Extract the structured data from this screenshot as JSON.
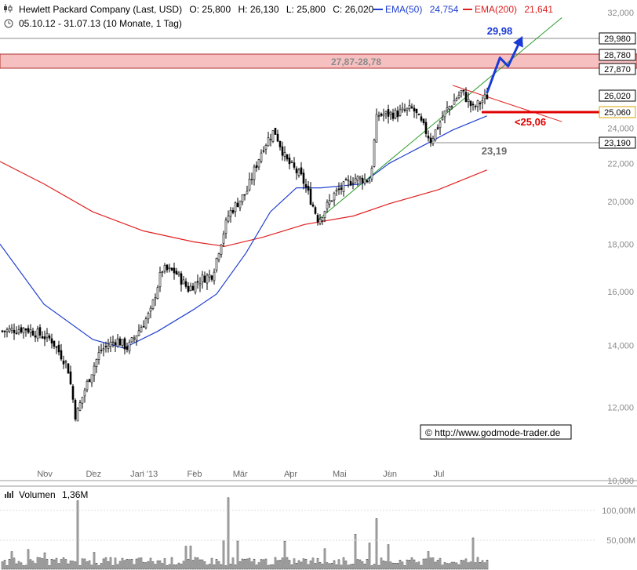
{
  "header": {
    "icon": "candlestick-chart-icon",
    "instrument": "Hewlett Packard Company (Last, USD)",
    "open": "O: 25,800",
    "high": "H: 26,130",
    "low": "L: 25,800",
    "close": "C: 26,020",
    "ema50_label": "EMA(50)",
    "ema50_value": "24,754",
    "ema200_label": "EMA(200)",
    "ema200_value": "21,641",
    "clock_icon": "clock-icon",
    "range": "05.10.12 - 31.07.13 (10 Monate, 1 Tag)"
  },
  "colors": {
    "ema50": "#2040d0",
    "ema200": "#e02020",
    "trendline": "#2a9a2a",
    "resistance_zone": "#f5b8b8",
    "arrow": "#1a3ad6",
    "support_line": "#e00000",
    "candle": "#000000",
    "volume_fill": "#bfbfbf"
  },
  "annotations": {
    "target": "29,98",
    "zone": "27,87-28,78",
    "support": "<25,06",
    "low_level": "23,19",
    "watermark": "© http://www.godmode-trader.de"
  },
  "price_tags": [
    "29,980",
    "28,780",
    "27,870",
    "26,020",
    "25,060",
    "23,190"
  ],
  "volume": {
    "label": "Volumen",
    "value": "1,36M",
    "ticks": [
      "100,00M",
      "50,00M"
    ]
  },
  "chart_data": {
    "type": "candlestick",
    "title": "Hewlett Packard Company (Last, USD)",
    "scale": "log",
    "ylim": [
      10,
      32
    ],
    "y_ticks": [
      "32,000",
      "30,000",
      "28,000",
      "26,000",
      "24,000",
      "22,000",
      "20,000",
      "18,000",
      "16,000",
      "14,000",
      "12,000",
      "10,000"
    ],
    "x_labels": [
      "Nov",
      "Dez",
      "Jan '13",
      "Feb",
      "Mär",
      "Apr",
      "Mai",
      "Jun",
      "Jul"
    ],
    "last": {
      "open": 25.8,
      "high": 26.13,
      "low": 25.8,
      "close": 26.02
    },
    "ema50_last": 24.754,
    "ema200_last": 21.641,
    "levels": {
      "target": 29.98,
      "zone_top": 28.78,
      "zone_bottom": 27.87,
      "last": 26.02,
      "support": 25.06,
      "low": 23.19
    },
    "close_path": [
      {
        "date": "2012-10-05",
        "close": 14.5
      },
      {
        "date": "2012-10-20",
        "close": 14.6
      },
      {
        "date": "2012-11-05",
        "close": 14.2
      },
      {
        "date": "2012-11-15",
        "close": 13.3
      },
      {
        "date": "2012-11-20",
        "close": 11.7
      },
      {
        "date": "2012-11-26",
        "close": 12.6
      },
      {
        "date": "2012-12-05",
        "close": 13.8
      },
      {
        "date": "2012-12-15",
        "close": 14.2
      },
      {
        "date": "2012-12-22",
        "close": 13.9
      },
      {
        "date": "2013-01-05",
        "close": 15.2
      },
      {
        "date": "2013-01-12",
        "close": 16.9
      },
      {
        "date": "2013-01-20",
        "close": 16.8
      },
      {
        "date": "2013-01-28",
        "close": 16.1
      },
      {
        "date": "2013-02-05",
        "close": 16.5
      },
      {
        "date": "2013-02-12",
        "close": 16.7
      },
      {
        "date": "2013-02-22",
        "close": 19.4
      },
      {
        "date": "2013-03-05",
        "close": 20.5
      },
      {
        "date": "2013-03-15",
        "close": 22.9
      },
      {
        "date": "2013-03-22",
        "close": 23.9
      },
      {
        "date": "2013-03-29",
        "close": 22.2
      },
      {
        "date": "2013-04-08",
        "close": 21.2
      },
      {
        "date": "2013-04-18",
        "close": 19.1
      },
      {
        "date": "2013-04-28",
        "close": 20.4
      },
      {
        "date": "2013-05-10",
        "close": 21.2
      },
      {
        "date": "2013-05-20",
        "close": 21.1
      },
      {
        "date": "2013-05-24",
        "close": 24.8
      },
      {
        "date": "2013-06-05",
        "close": 24.9
      },
      {
        "date": "2013-06-15",
        "close": 25.2
      },
      {
        "date": "2013-06-26",
        "close": 23.3
      },
      {
        "date": "2013-07-05",
        "close": 25.0
      },
      {
        "date": "2013-07-15",
        "close": 26.3
      },
      {
        "date": "2013-07-22",
        "close": 25.2
      },
      {
        "date": "2013-07-31",
        "close": 26.02
      }
    ],
    "ema50": [
      {
        "date": "2012-10-05",
        "value": 18.0
      },
      {
        "date": "2012-11-01",
        "value": 15.5
      },
      {
        "date": "2012-12-01",
        "value": 14.2
      },
      {
        "date": "2012-12-20",
        "value": 13.9
      },
      {
        "date": "2013-01-10",
        "value": 14.5
      },
      {
        "date": "2013-02-01",
        "value": 15.3
      },
      {
        "date": "2013-02-15",
        "value": 15.9
      },
      {
        "date": "2013-03-05",
        "value": 17.6
      },
      {
        "date": "2013-03-20",
        "value": 19.5
      },
      {
        "date": "2013-04-05",
        "value": 20.7
      },
      {
        "date": "2013-04-20",
        "value": 20.7
      },
      {
        "date": "2013-05-15",
        "value": 20.9
      },
      {
        "date": "2013-06-01",
        "value": 22.0
      },
      {
        "date": "2013-06-20",
        "value": 22.9
      },
      {
        "date": "2013-07-10",
        "value": 23.9
      },
      {
        "date": "2013-07-31",
        "value": 24.754
      }
    ],
    "ema200": [
      {
        "date": "2012-10-05",
        "value": 22.1
      },
      {
        "date": "2012-11-01",
        "value": 20.9
      },
      {
        "date": "2012-12-01",
        "value": 19.5
      },
      {
        "date": "2013-01-01",
        "value": 18.6
      },
      {
        "date": "2013-02-01",
        "value": 18.1
      },
      {
        "date": "2013-02-20",
        "value": 17.9
      },
      {
        "date": "2013-03-15",
        "value": 18.3
      },
      {
        "date": "2013-04-10",
        "value": 18.9
      },
      {
        "date": "2013-05-10",
        "value": 19.3
      },
      {
        "date": "2013-06-01",
        "value": 19.9
      },
      {
        "date": "2013-07-01",
        "value": 20.6
      },
      {
        "date": "2013-07-31",
        "value": 21.641
      }
    ],
    "trendline": [
      {
        "date": "2013-04-18",
        "value": 19.1
      },
      {
        "date": "2013-09-15",
        "value": 31.6
      }
    ],
    "resistance_line": [
      {
        "date": "2013-07-10",
        "value": 26.7
      },
      {
        "date": "2013-09-15",
        "value": 24.4
      }
    ],
    "forecast_arrow": [
      {
        "date": "2013-07-31",
        "value": 26.2
      },
      {
        "date": "2013-08-08",
        "value": 28.6
      },
      {
        "date": "2013-08-13",
        "value": 28.0
      },
      {
        "date": "2013-08-21",
        "value": 29.98
      }
    ],
    "volume_spikes": [
      {
        "date": "2012-11-21",
        "value": 115
      },
      {
        "date": "2013-02-22",
        "value": 120
      },
      {
        "date": "2013-05-24",
        "value": 85
      }
    ]
  }
}
